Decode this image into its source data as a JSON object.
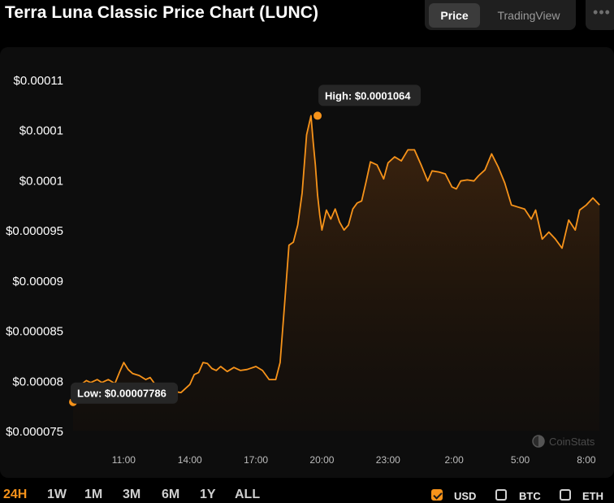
{
  "header": {
    "title": "Terra Luna Classic Price Chart (LUNC)",
    "tabs": [
      {
        "label": "Price",
        "active": true
      },
      {
        "label": "TradingView",
        "active": false
      }
    ],
    "more_icon": "more-dots-icon"
  },
  "chart_data": {
    "type": "area",
    "title": "Terra Luna Classic Price Chart (LUNC)",
    "line_color": "#f7931a",
    "y_ticks": [
      "$0.00011",
      "$0.0001",
      "$0.0001",
      "$0.000095",
      "$0.00009",
      "$0.000085",
      "$0.00008",
      "$0.000075"
    ],
    "y_tick_values": [
      0.00011,
      0.000105,
      0.0001,
      9.5e-05,
      9e-05,
      8.5e-05,
      8e-05,
      7.5e-05
    ],
    "x_ticks": [
      "11:00",
      "14:00",
      "17:00",
      "20:00",
      "23:00",
      "2:00",
      "5:00",
      "8:00"
    ],
    "x_tick_hours": [
      11,
      14,
      17,
      20,
      23,
      26,
      29,
      32
    ],
    "ylim": [
      7.5e-05,
      0.00011
    ],
    "xlim_hours": [
      8.7,
      33.0
    ],
    "high": {
      "label": "High: $0.0001064",
      "x_hour": 19.8,
      "y": 0.0001064
    },
    "low": {
      "label": "Low: $0.00007786",
      "x_hour": 8.7,
      "y": 7.786e-05
    },
    "series": [
      {
        "x_hours": [
          8.7,
          9.0,
          9.3,
          9.5,
          9.8,
          10.0,
          10.3,
          10.6,
          10.8,
          11.0,
          11.2,
          11.4,
          11.7,
          12.0,
          12.2,
          12.4,
          12.7,
          13.0,
          13.3,
          13.6,
          14.0,
          14.2,
          14.4,
          14.6,
          14.8,
          15.0,
          15.2,
          15.4,
          15.7,
          16.0,
          16.3,
          16.6,
          17.0,
          17.3,
          17.6,
          17.9,
          18.1,
          18.3,
          18.5,
          18.7,
          18.9,
          19.1,
          19.3,
          19.5,
          19.6,
          19.7,
          19.8,
          19.9,
          20.0,
          20.2,
          20.4,
          20.6,
          20.8,
          21.0,
          21.2,
          21.4,
          21.6,
          21.8,
          22.0,
          22.2,
          22.5,
          22.8,
          23.0,
          23.3,
          23.6,
          23.9,
          24.2,
          24.5,
          24.8,
          25.0,
          25.3,
          25.6,
          25.9,
          26.1,
          26.3,
          26.6,
          26.9,
          27.1,
          27.4,
          27.7,
          28.0,
          28.3,
          28.6,
          28.9,
          29.2,
          29.5,
          29.7,
          30.0,
          30.3,
          30.6,
          30.9,
          31.2,
          31.5,
          31.7,
          32.0,
          32.3,
          32.6
        ],
        "values": [
          7.786e-05,
          7.95e-05,
          8e-05,
          7.98e-05,
          8.01e-05,
          7.98e-05,
          8.01e-05,
          7.97e-05,
          8.08e-05,
          8.18e-05,
          8.11e-05,
          8.07e-05,
          8.05e-05,
          8.01e-05,
          8.03e-05,
          7.97e-05,
          7.97e-05,
          7.93e-05,
          7.89e-05,
          7.88e-05,
          7.96e-05,
          8.06e-05,
          8.08e-05,
          8.18e-05,
          8.17e-05,
          8.12e-05,
          8.1e-05,
          8.14e-05,
          8.09e-05,
          8.13e-05,
          8.1e-05,
          8.11e-05,
          8.14e-05,
          8.1e-05,
          8.01e-05,
          8.01e-05,
          8.18e-05,
          8.75e-05,
          9.35e-05,
          9.38e-05,
          9.55e-05,
          9.87e-05,
          0.0001045,
          0.0001064,
          0.0001038,
          0.0001015,
          9.85e-05,
          9.65e-05,
          9.5e-05,
          9.7e-05,
          9.61e-05,
          9.71e-05,
          9.58e-05,
          9.5e-05,
          9.55e-05,
          9.71e-05,
          9.77e-05,
          9.79e-05,
          9.98e-05,
          0.0001018,
          0.0001015,
          0.0001001,
          0.0001017,
          0.0001023,
          0.0001019,
          0.000103,
          0.000103,
          0.0001015,
          9.99e-05,
          0.0001009,
          0.0001008,
          0.0001006,
          9.93e-05,
          9.91e-05,
          9.99e-05,
          0.0001,
          9.99e-05,
          0.0001004,
          0.000101,
          0.0001026,
          0.0001013,
          9.97e-05,
          9.75e-05,
          9.73e-05,
          9.71e-05,
          9.61e-05,
          9.7e-05,
          9.41e-05,
          9.48e-05,
          9.41e-05,
          9.32e-05,
          9.6e-05,
          9.5e-05,
          9.7e-05,
          9.75e-05,
          9.82e-05,
          9.75e-05
        ]
      }
    ],
    "watermark": "CoinStats"
  },
  "range_buttons": [
    {
      "label": "24H",
      "active": true
    },
    {
      "label": "1W",
      "active": false
    },
    {
      "label": "1M",
      "active": false
    },
    {
      "label": "3M",
      "active": false
    },
    {
      "label": "6M",
      "active": false
    },
    {
      "label": "1Y",
      "active": false
    },
    {
      "label": "ALL",
      "active": false
    }
  ],
  "currencies": [
    {
      "label": "USD",
      "checked": true
    },
    {
      "label": "BTC",
      "checked": false
    },
    {
      "label": "ETH",
      "checked": false
    }
  ]
}
